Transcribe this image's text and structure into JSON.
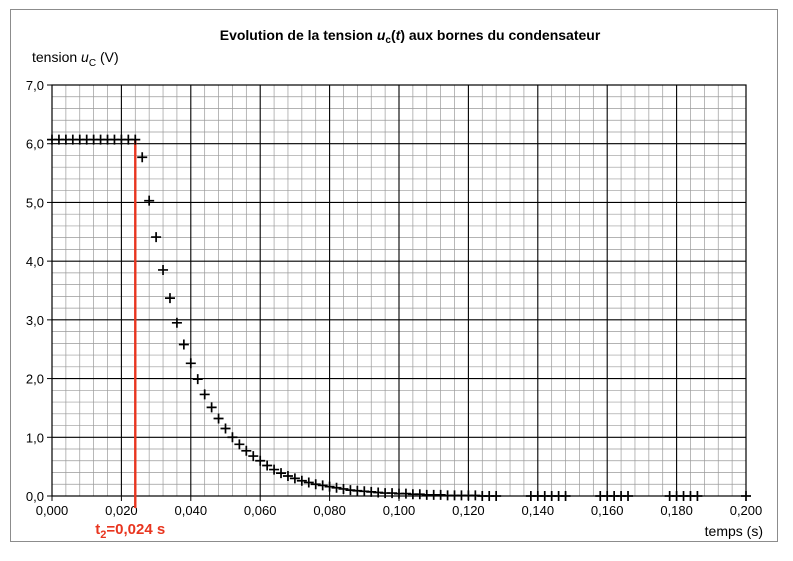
{
  "chart_data": {
    "type": "scatter",
    "title": {
      "prefix": "Evolution de la tension ",
      "var": "u",
      "var_sub": "c",
      "arg_open": "(",
      "arg": "t",
      "arg_close": ")",
      "suffix": " aux bornes du condensateur"
    },
    "ylabel": {
      "text": "tension ",
      "var": "u",
      "sub": "C",
      "unit": " (V)"
    },
    "xlabel": "temps (s)",
    "xlim": [
      0,
      0.2
    ],
    "ylim": [
      0,
      7
    ],
    "x_ticks": [
      "0,000",
      "0,020",
      "0,040",
      "0,060",
      "0,080",
      "0,100",
      "0,120",
      "0,140",
      "0,160",
      "0,180",
      "0,200"
    ],
    "y_ticks": [
      "0,0",
      "1,0",
      "2,0",
      "3,0",
      "4,0",
      "5,0",
      "6,0",
      "7,0"
    ],
    "grid": true,
    "marker": "+",
    "marker_color": "#000000",
    "series": [
      {
        "points": [
          [
            0.0,
            6.07
          ],
          [
            0.002,
            6.07
          ],
          [
            0.004,
            6.07
          ],
          [
            0.006,
            6.07
          ],
          [
            0.008,
            6.07
          ],
          [
            0.01,
            6.07
          ],
          [
            0.012,
            6.07
          ],
          [
            0.014,
            6.07
          ],
          [
            0.016,
            6.07
          ],
          [
            0.018,
            6.07
          ],
          [
            0.02,
            6.07
          ],
          [
            0.022,
            6.07
          ],
          [
            0.024,
            6.07
          ],
          [
            0.026,
            5.77
          ],
          [
            0.028,
            5.03
          ],
          [
            0.03,
            4.41
          ],
          [
            0.032,
            3.85
          ],
          [
            0.034,
            3.37
          ],
          [
            0.036,
            2.95
          ],
          [
            0.038,
            2.58
          ],
          [
            0.04,
            2.26
          ],
          [
            0.042,
            1.99
          ],
          [
            0.044,
            1.73
          ],
          [
            0.046,
            1.51
          ],
          [
            0.048,
            1.32
          ],
          [
            0.05,
            1.15
          ],
          [
            0.052,
            1.0
          ],
          [
            0.054,
            0.88
          ],
          [
            0.056,
            0.77
          ],
          [
            0.058,
            0.68
          ],
          [
            0.06,
            0.6
          ],
          [
            0.062,
            0.52
          ],
          [
            0.064,
            0.45
          ],
          [
            0.066,
            0.39
          ],
          [
            0.068,
            0.34
          ],
          [
            0.07,
            0.3
          ],
          [
            0.072,
            0.26
          ],
          [
            0.074,
            0.23
          ],
          [
            0.076,
            0.2
          ],
          [
            0.078,
            0.18
          ],
          [
            0.08,
            0.16
          ],
          [
            0.082,
            0.14
          ],
          [
            0.084,
            0.12
          ],
          [
            0.086,
            0.1
          ],
          [
            0.088,
            0.09
          ],
          [
            0.09,
            0.08
          ],
          [
            0.092,
            0.07
          ],
          [
            0.094,
            0.06
          ],
          [
            0.096,
            0.05
          ],
          [
            0.098,
            0.05
          ],
          [
            0.1,
            0.04
          ],
          [
            0.102,
            0.04
          ],
          [
            0.104,
            0.03
          ],
          [
            0.106,
            0.03
          ],
          [
            0.108,
            0.02
          ],
          [
            0.11,
            0.02
          ],
          [
            0.112,
            0.02
          ],
          [
            0.114,
            0.01
          ],
          [
            0.116,
            0.01
          ],
          [
            0.118,
            0.01
          ],
          [
            0.12,
            0.01
          ],
          [
            0.122,
            0.01
          ],
          [
            0.124,
            0.0
          ],
          [
            0.126,
            0.0
          ],
          [
            0.128,
            0.0
          ],
          [
            0.138,
            0.0
          ],
          [
            0.14,
            0.0
          ],
          [
            0.142,
            0.0
          ],
          [
            0.144,
            0.0
          ],
          [
            0.146,
            0.0
          ],
          [
            0.148,
            0.0
          ],
          [
            0.158,
            0.0
          ],
          [
            0.16,
            0.0
          ],
          [
            0.162,
            0.0
          ],
          [
            0.164,
            0.0
          ],
          [
            0.166,
            0.0
          ],
          [
            0.178,
            0.0
          ],
          [
            0.18,
            0.0
          ],
          [
            0.182,
            0.0
          ],
          [
            0.184,
            0.0
          ],
          [
            0.186,
            0.0
          ],
          [
            0.2,
            0.0
          ]
        ]
      }
    ],
    "annotations": [
      {
        "type": "vline",
        "x": 0.024,
        "y_top": 6.07,
        "color": "#e8351f",
        "label_main": "t",
        "label_sub": "2",
        "label_rest": "=0,024 s"
      }
    ]
  }
}
